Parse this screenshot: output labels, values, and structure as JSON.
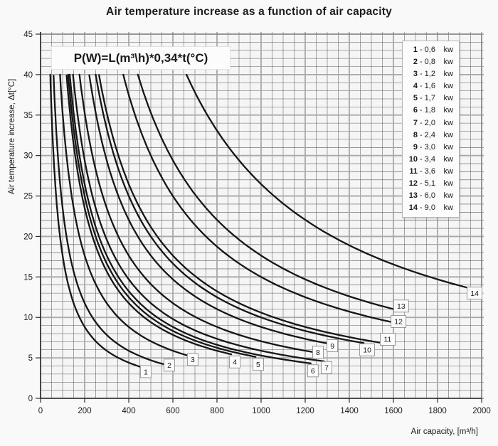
{
  "page": {
    "background": "#f9f9f9"
  },
  "chart_data": {
    "type": "line",
    "title": "Air temperature increase as a function of air capacity",
    "formula": "P(W)=L(m³\\h)*0,34*t(°C)",
    "xlabel": "Air capacity, [m³/h]",
    "ylabel": "Air temperature increase, Δt[°C]",
    "relation": "Δt(°C) = P(W) / (0,34 · L(m³/h)), curves clipped at Δt = 40",
    "xlim": [
      0,
      2000
    ],
    "ylim": [
      0,
      45
    ],
    "x_ticks": [
      0,
      200,
      400,
      600,
      800,
      1000,
      1200,
      1400,
      1600,
      1800,
      2000
    ],
    "y_ticks": [
      0,
      5,
      10,
      15,
      20,
      25,
      30,
      35,
      40,
      45
    ],
    "x_minor_step": 50,
    "y_minor_step": 1,
    "curve_clip_top": 40,
    "grid": "on",
    "legend_position": "top-right",
    "series": [
      {
        "label": "1",
        "power_kw": 0.6,
        "x_start": 44,
        "x_end": 470,
        "label_pos": [
          477,
          3.3
        ]
      },
      {
        "label": "2",
        "power_kw": 0.8,
        "x_start": 59,
        "x_end": 575,
        "label_pos": [
          584,
          4.1
        ]
      },
      {
        "label": "3",
        "power_kw": 1.2,
        "x_start": 88,
        "x_end": 680,
        "label_pos": [
          690,
          4.8
        ]
      },
      {
        "label": "4",
        "power_kw": 1.6,
        "x_start": 118,
        "x_end": 865,
        "label_pos": [
          881,
          4.5
        ]
      },
      {
        "label": "5",
        "power_kw": 1.7,
        "x_start": 125,
        "x_end": 975,
        "label_pos": [
          987,
          4.2
        ]
      },
      {
        "label": "6",
        "power_kw": 1.8,
        "x_start": 132,
        "x_end": 1225,
        "label_pos": [
          1235,
          3.4
        ]
      },
      {
        "label": "7",
        "power_kw": 2.0,
        "x_start": 147,
        "x_end": 1285,
        "label_pos": [
          1297,
          3.8
        ]
      },
      {
        "label": "8",
        "power_kw": 2.4,
        "x_start": 176,
        "x_end": 1250,
        "label_pos": [
          1258,
          5.7
        ]
      },
      {
        "label": "9",
        "power_kw": 3.0,
        "x_start": 221,
        "x_end": 1320,
        "label_pos": [
          1323,
          6.5
        ]
      },
      {
        "label": "10",
        "power_kw": 3.4,
        "x_start": 250,
        "x_end": 1465,
        "label_pos": [
          1481,
          6.0
        ]
      },
      {
        "label": "11",
        "power_kw": 3.6,
        "x_start": 265,
        "x_end": 1555,
        "label_pos": [
          1574,
          7.3
        ]
      },
      {
        "label": "12",
        "power_kw": 5.1,
        "x_start": 375,
        "x_end": 1605,
        "label_pos": [
          1623,
          9.5
        ]
      },
      {
        "label": "13",
        "power_kw": 6.0,
        "x_start": 441,
        "x_end": 1630,
        "label_pos": [
          1635,
          11.4
        ]
      },
      {
        "label": "14",
        "power_kw": 9.0,
        "x_start": 662,
        "x_end": 2000,
        "label_pos": [
          1968,
          13.0
        ]
      }
    ],
    "legend": {
      "unit": "kw",
      "items": [
        {
          "n": "1",
          "v": "0,6"
        },
        {
          "n": "2",
          "v": "0,8"
        },
        {
          "n": "3",
          "v": "1,2"
        },
        {
          "n": "4",
          "v": "1,6"
        },
        {
          "n": "5",
          "v": "1,7"
        },
        {
          "n": "6",
          "v": "1,8"
        },
        {
          "n": "7",
          "v": "2,0"
        },
        {
          "n": "8",
          "v": "2,4"
        },
        {
          "n": "9",
          "v": "3,0"
        },
        {
          "n": "10",
          "v": "3,4"
        },
        {
          "n": "11",
          "v": "3,6"
        },
        {
          "n": "12",
          "v": "5,1"
        },
        {
          "n": "13",
          "v": "6,0"
        },
        {
          "n": "14",
          "v": "9,0"
        }
      ]
    },
    "colors": {
      "curve": "#161616",
      "grid_minor": "#5c5c5c",
      "grid_major": "#a8a8a8",
      "axis": "#2b2b2b",
      "frame": "#6f6f6f",
      "plot_bg": "#f5f5f5",
      "tick_text": "#1a1a1a",
      "label_box_bg": "#fbfbfb",
      "label_box_border": "#8f8f8f"
    }
  }
}
